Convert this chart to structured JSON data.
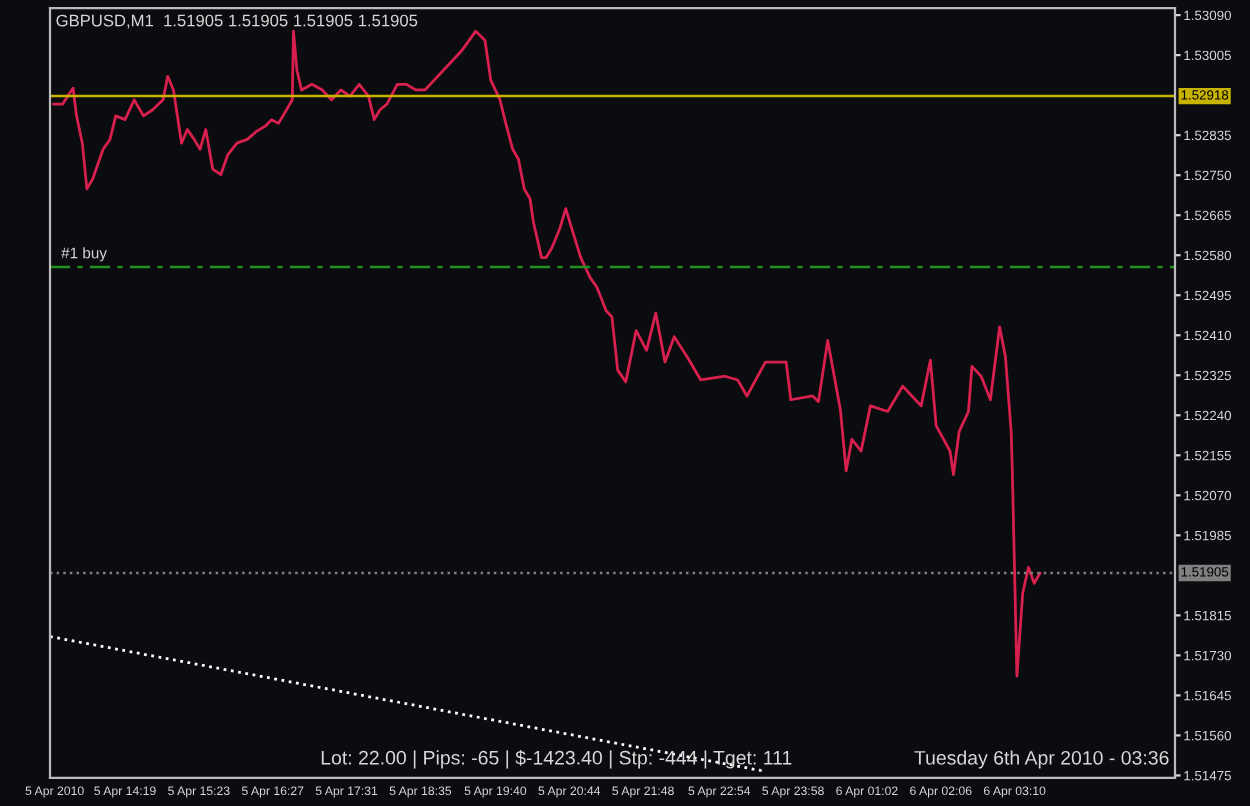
{
  "chart_data": {
    "type": "line",
    "title": "GBPUSD,M1  1.51905 1.51905 1.51905 1.51905",
    "series": [
      {
        "color": "#d8204f",
        "line_style": "solid",
        "x": [
          "2010-04-05T13:17",
          "2010-04-05T13:25",
          "2010-04-05T13:34",
          "2010-04-05T13:37",
          "2010-04-05T13:42",
          "2010-04-05T13:46",
          "2010-04-05T13:51",
          "2010-04-05T14:00",
          "2010-04-05T14:06",
          "2010-04-05T14:11",
          "2010-04-05T14:19",
          "2010-04-05T14:27",
          "2010-04-05T14:35",
          "2010-04-05T14:43",
          "2010-04-05T14:52",
          "2010-04-05T14:56",
          "2010-04-05T15:01",
          "2010-04-05T15:08",
          "2010-04-05T15:13",
          "2010-04-05T15:19",
          "2010-04-05T15:24",
          "2010-04-05T15:29",
          "2010-04-05T15:35",
          "2010-04-05T15:42",
          "2010-04-05T15:48",
          "2010-04-05T15:56",
          "2010-04-05T16:05",
          "2010-04-05T16:13",
          "2010-04-05T16:21",
          "2010-04-05T16:26",
          "2010-04-05T16:32",
          "2010-04-05T16:39",
          "2010-04-05T16:44",
          "2010-04-05T16:45",
          "2010-04-05T16:48",
          "2010-04-05T16:52",
          "2010-04-05T17:01",
          "2010-04-05T17:10",
          "2010-04-05T17:18",
          "2010-04-05T17:26",
          "2010-04-05T17:34",
          "2010-04-05T17:42",
          "2010-04-05T17:50",
          "2010-04-05T17:55",
          "2010-04-05T18:00",
          "2010-04-05T18:06",
          "2010-04-05T18:15",
          "2010-04-05T18:23",
          "2010-04-05T18:31",
          "2010-04-05T18:39",
          "2010-04-05T18:47",
          "2010-04-05T18:55",
          "2010-04-05T19:03",
          "2010-04-05T19:11",
          "2010-04-05T19:23",
          "2010-04-05T19:31",
          "2010-04-05T19:36",
          "2010-04-05T19:44",
          "2010-04-05T19:49",
          "2010-04-05T19:55",
          "2010-04-05T20:00",
          "2010-04-05T20:05",
          "2010-04-05T20:10",
          "2010-04-05T20:13",
          "2010-04-05T20:20",
          "2010-04-05T20:24",
          "2010-04-05T20:29",
          "2010-04-05T20:36",
          "2010-04-05T20:41",
          "2010-04-05T20:46",
          "2010-04-05T20:54",
          "2010-04-05T21:02",
          "2010-04-05T21:08",
          "2010-04-05T21:16",
          "2010-04-05T21:21",
          "2010-04-05T21:26",
          "2010-04-05T21:33",
          "2010-04-05T21:42",
          "2010-04-05T21:51",
          "2010-04-05T21:59",
          "2010-04-05T22:07",
          "2010-04-05T22:15",
          "2010-04-05T22:26",
          "2010-04-05T22:38",
          "2010-04-05T22:59",
          "2010-04-05T23:10",
          "2010-04-05T23:18",
          "2010-04-05T23:34",
          "2010-04-05T23:52",
          "2010-04-05T23:56",
          "2010-04-06T00:15",
          "2010-04-06T00:20",
          "2010-04-06T00:28",
          "2010-04-06T00:39",
          "2010-04-06T00:44",
          "2010-04-06T00:49",
          "2010-04-06T00:57",
          "2010-04-06T01:05",
          "2010-04-06T01:20",
          "2010-04-06T01:33",
          "2010-04-06T01:41",
          "2010-04-06T01:49",
          "2010-04-06T01:57",
          "2010-04-06T02:02",
          "2010-04-06T02:14",
          "2010-04-06T02:17",
          "2010-04-06T02:22",
          "2010-04-06T02:30",
          "2010-04-06T02:33",
          "2010-04-06T02:41",
          "2010-04-06T02:49",
          "2010-04-06T02:57",
          "2010-04-06T03:02",
          "2010-04-06T03:07",
          "2010-04-06T03:08",
          "2010-04-06T03:10",
          "2010-04-06T03:12",
          "2010-04-06T03:17",
          "2010-04-06T03:22",
          "2010-04-06T03:27",
          "2010-04-06T03:32"
        ],
        "values": [
          1.52901,
          1.52901,
          1.52935,
          1.52876,
          1.52818,
          1.52721,
          1.52742,
          1.52805,
          1.52826,
          1.52876,
          1.52868,
          1.5291,
          1.52876,
          1.52889,
          1.5291,
          1.5296,
          1.52931,
          1.52818,
          1.52847,
          1.52826,
          1.52805,
          1.52847,
          1.52763,
          1.52751,
          1.52793,
          1.52818,
          1.52826,
          1.52843,
          1.52855,
          1.52868,
          1.5286,
          1.52889,
          1.5291,
          1.53056,
          1.52973,
          1.52931,
          1.52943,
          1.52931,
          1.5291,
          1.52931,
          1.52918,
          1.52943,
          1.52918,
          1.52868,
          1.52889,
          1.52901,
          1.52943,
          1.52943,
          1.52931,
          1.52931,
          1.52952,
          1.52973,
          1.52994,
          1.53015,
          1.53056,
          1.53036,
          1.52952,
          1.5291,
          1.5286,
          1.52805,
          1.52784,
          1.52721,
          1.527,
          1.5265,
          1.52575,
          1.52575,
          1.52596,
          1.52638,
          1.52679,
          1.52638,
          1.52575,
          1.52533,
          1.52512,
          1.52462,
          1.52449,
          1.52336,
          1.52311,
          1.5242,
          1.52378,
          1.52457,
          1.52353,
          1.52407,
          1.52365,
          1.52315,
          1.52323,
          1.52315,
          1.52281,
          1.52353,
          1.52353,
          1.52273,
          1.52281,
          1.52269,
          1.52399,
          1.52252,
          1.52122,
          1.52189,
          1.52164,
          1.5226,
          1.52248,
          1.52302,
          1.52281,
          1.5226,
          1.52357,
          1.52218,
          1.52164,
          1.52114,
          1.52206,
          1.52248,
          1.52344,
          1.52323,
          1.52273,
          1.52428,
          1.52365,
          1.52206,
          1.52122,
          1.51904,
          1.51686,
          1.51862,
          1.51917,
          1.51883,
          1.51905
        ]
      },
      {
        "color": "#ffffff",
        "line_style": "dotted",
        "x": [
          "2010-04-05T13:14",
          "2010-04-05T23:31"
        ],
        "values": [
          1.5177,
          1.51485
        ]
      }
    ],
    "xlim": [
      "2010-04-05T13:14",
      "2010-04-06T05:29"
    ],
    "ylim": [
      1.5147,
      1.53105
    ],
    "xticks": [
      {
        "value": "2010-04-05T13:18",
        "label": "5 Apr 2010"
      },
      {
        "value": "2010-04-05T14:19",
        "label": "5 Apr 14:19"
      },
      {
        "value": "2010-04-05T15:23",
        "label": "5 Apr 15:23"
      },
      {
        "value": "2010-04-05T16:27",
        "label": "5 Apr 16:27"
      },
      {
        "value": "2010-04-05T17:31",
        "label": "5 Apr 17:31"
      },
      {
        "value": "2010-04-05T18:35",
        "label": "5 Apr 18:35"
      },
      {
        "value": "2010-04-05T19:40",
        "label": "5 Apr 19:40"
      },
      {
        "value": "2010-04-05T20:44",
        "label": "5 Apr 20:44"
      },
      {
        "value": "2010-04-05T21:48",
        "label": "5 Apr 21:48"
      },
      {
        "value": "2010-04-05T22:54",
        "label": "5 Apr 22:54"
      },
      {
        "value": "2010-04-05T23:58",
        "label": "5 Apr 23:58"
      },
      {
        "value": "2010-04-06T01:02",
        "label": "6 Apr 01:02"
      },
      {
        "value": "2010-04-06T02:06",
        "label": "6 Apr 02:06"
      },
      {
        "value": "2010-04-06T03:10",
        "label": "6 Apr 03:10"
      }
    ],
    "yticks": [
      {
        "value": 1.5309,
        "label": "1.53090"
      },
      {
        "value": 1.53005,
        "label": "1.53005"
      },
      {
        "value": 1.52835,
        "label": "1.52835"
      },
      {
        "value": 1.5275,
        "label": "1.52750"
      },
      {
        "value": 1.52665,
        "label": "1.52665"
      },
      {
        "value": 1.5258,
        "label": "1.52580"
      },
      {
        "value": 1.52495,
        "label": "1.52495"
      },
      {
        "value": 1.5241,
        "label": "1.52410"
      },
      {
        "value": 1.52325,
        "label": "1.52325"
      },
      {
        "value": 1.5224,
        "label": "1.52240"
      },
      {
        "value": 1.52155,
        "label": "1.52155"
      },
      {
        "value": 1.5207,
        "label": "1.52070"
      },
      {
        "value": 1.51985,
        "label": "1.51985"
      },
      {
        "value": 1.51815,
        "label": "1.51815"
      },
      {
        "value": 1.5173,
        "label": "1.51730"
      },
      {
        "value": 1.51645,
        "label": "1.51645"
      },
      {
        "value": 1.5156,
        "label": "1.51560"
      },
      {
        "value": 1.51475,
        "label": "1.51475"
      }
    ],
    "ref_lines": [
      {
        "axis": "y",
        "value": 1.52918,
        "label": "1.52918",
        "color": "#c8b400",
        "line_style": "solid"
      },
      {
        "axis": "y",
        "value": 1.52555,
        "label": "#1 buy",
        "color": "#1f8f1f",
        "line_style": "dashed"
      },
      {
        "axis": "y",
        "value": 1.51905,
        "label": "1.51905",
        "color": "#808080",
        "line_style": "dotted"
      }
    ],
    "annotations": [
      "Lot: 22.00 | Pips: -65 | $-1423.40 | Stp: -444 | Tget: 111",
      "Tuesday 6th Apr 2010 - 03:36"
    ],
    "grid": false,
    "legend": false
  }
}
